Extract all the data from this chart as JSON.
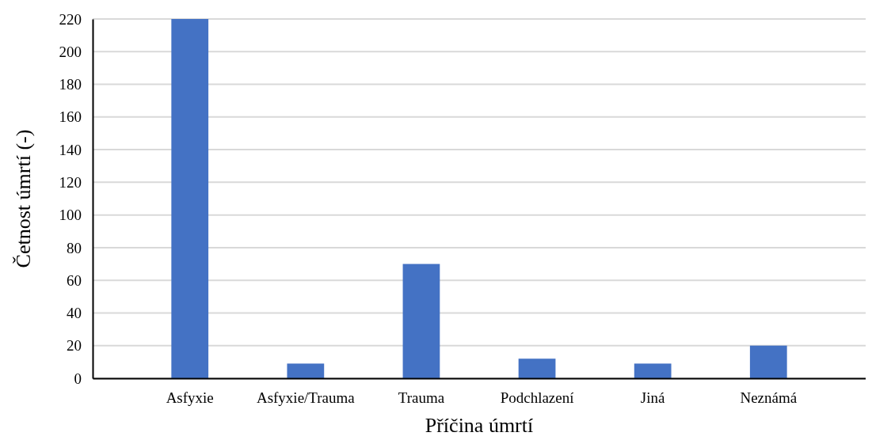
{
  "chart_data": {
    "type": "bar",
    "xlabel": "Příčina úmrtí",
    "ylabel": "Četnost úmrtí (-)",
    "categories": [
      "Asfyxie",
      "Asfyxie/Trauma",
      "Trauma",
      "Podchlazení",
      "Jiná",
      "Neznámá"
    ],
    "values": [
      220,
      9,
      70,
      12,
      9,
      20
    ],
    "color": "#4472c4",
    "ylim": [
      0,
      220
    ],
    "yticks": [
      0,
      20,
      40,
      60,
      80,
      100,
      120,
      140,
      160,
      180,
      200,
      220
    ],
    "grid": "y"
  }
}
